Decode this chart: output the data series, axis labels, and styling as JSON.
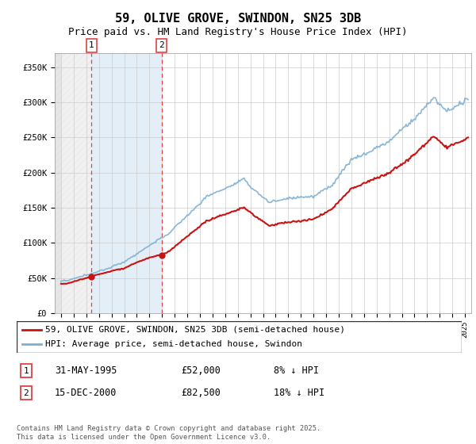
{
  "title": "59, OLIVE GROVE, SWINDON, SN25 3DB",
  "subtitle": "Price paid vs. HM Land Registry's House Price Index (HPI)",
  "ylim": [
    0,
    370000
  ],
  "yticks": [
    0,
    50000,
    100000,
    150000,
    200000,
    250000,
    300000,
    350000
  ],
  "ytick_labels": [
    "£0",
    "£50K",
    "£100K",
    "£150K",
    "£200K",
    "£250K",
    "£300K",
    "£350K"
  ],
  "hpi_color": "#7bafd4",
  "price_color": "#cc1111",
  "marker_color": "#cc1111",
  "vline_color": "#dd4444",
  "grid_color": "#cccccc",
  "sale1_date_num": 1995.42,
  "sale1_price": 52000,
  "sale1_label": "1",
  "sale1_date_str": "31-MAY-1995",
  "sale1_price_str": "£52,000",
  "sale1_hpi_str": "8% ↓ HPI",
  "sale2_date_num": 2000.96,
  "sale2_price": 82500,
  "sale2_label": "2",
  "sale2_date_str": "15-DEC-2000",
  "sale2_price_str": "£82,500",
  "sale2_hpi_str": "18% ↓ HPI",
  "legend_line1": "59, OLIVE GROVE, SWINDON, SN25 3DB (semi-detached house)",
  "legend_line2": "HPI: Average price, semi-detached house, Swindon",
  "footer": "Contains HM Land Registry data © Crown copyright and database right 2025.\nThis data is licensed under the Open Government Licence v3.0.",
  "title_fontsize": 11,
  "subtitle_fontsize": 9,
  "axis_fontsize": 7.5,
  "legend_fontsize": 8
}
